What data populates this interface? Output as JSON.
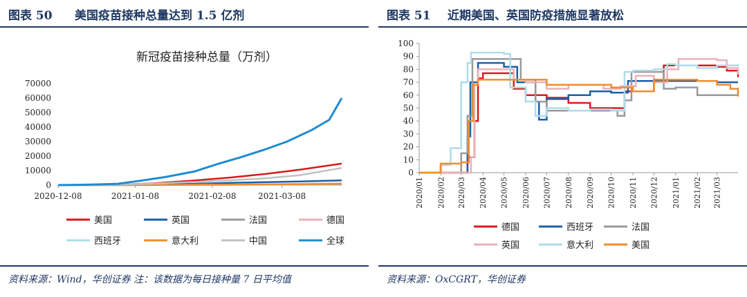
{
  "left_panel": {
    "figure_number": "图表 50",
    "figure_title": "美国疫苗接种总量达到 1.5 亿剂",
    "source_note": "资料来源：Wind，华创证券 注：该数据为每日接种量 7 日平均值"
  },
  "right_panel": {
    "figure_number": "图表 51",
    "figure_title": "近期美国、英国防疫措施显著放松",
    "source_note": "资料来源：OxCGRT，华创证券"
  },
  "chart_data": [
    {
      "type": "line",
      "title": "新冠疫苗接种总量（万剂）",
      "xlabel": "",
      "ylabel": "",
      "x_start": "2020-12-08",
      "x_end": "2021-04-01",
      "x_ticks": [
        "2020-12-08",
        "2021-01-08",
        "2021-02-08",
        "2021-03-08"
      ],
      "ylim": [
        0,
        70000
      ],
      "y_ticks": [
        0,
        10000,
        20000,
        30000,
        40000,
        50000,
        60000,
        70000
      ],
      "grid": false,
      "legend_position": "bottom",
      "series": [
        {
          "name": "美国",
          "color": "#d7191c",
          "points": [
            [
              "2020-12-08",
              0
            ],
            [
              "2020-12-20",
              30
            ],
            [
              "2021-01-01",
              280
            ],
            [
              "2021-01-15",
              1200
            ],
            [
              "2021-02-01",
              3200
            ],
            [
              "2021-02-15",
              5200
            ],
            [
              "2021-03-01",
              7600
            ],
            [
              "2021-03-15",
              10600
            ],
            [
              "2021-04-01",
              14800
            ]
          ]
        },
        {
          "name": "英国",
          "color": "#1a5ea8",
          "points": [
            [
              "2020-12-08",
              0
            ],
            [
              "2020-12-20",
              50
            ],
            [
              "2021-01-01",
              110
            ],
            [
              "2021-01-15",
              330
            ],
            [
              "2021-02-01",
              900
            ],
            [
              "2021-02-15",
              1500
            ],
            [
              "2021-03-01",
              2000
            ],
            [
              "2021-03-15",
              2500
            ],
            [
              "2021-04-01",
              3300
            ]
          ]
        },
        {
          "name": "法国",
          "color": "#999999",
          "points": [
            [
              "2020-12-08",
              0
            ],
            [
              "2021-01-15",
              50
            ],
            [
              "2021-02-01",
              150
            ],
            [
              "2021-02-15",
              280
            ],
            [
              "2021-03-01",
              420
            ],
            [
              "2021-03-15",
              620
            ],
            [
              "2021-04-01",
              1000
            ]
          ]
        },
        {
          "name": "德国",
          "color": "#e9b1b8",
          "points": [
            [
              "2020-12-08",
              0
            ],
            [
              "2021-01-01",
              20
            ],
            [
              "2021-01-15",
              80
            ],
            [
              "2021-02-01",
              250
            ],
            [
              "2021-02-15",
              400
            ],
            [
              "2021-03-01",
              600
            ],
            [
              "2021-03-15",
              850
            ],
            [
              "2021-04-01",
              1200
            ]
          ]
        },
        {
          "name": "西班牙",
          "color": "#aedbea",
          "points": [
            [
              "2020-12-08",
              0
            ],
            [
              "2021-01-15",
              50
            ],
            [
              "2021-02-01",
              140
            ],
            [
              "2021-02-15",
              250
            ],
            [
              "2021-03-01",
              380
            ],
            [
              "2021-03-15",
              520
            ],
            [
              "2021-04-01",
              780
            ]
          ]
        },
        {
          "name": "意大利",
          "color": "#f08c2e",
          "points": [
            [
              "2020-12-08",
              0
            ],
            [
              "2021-01-15",
              60
            ],
            [
              "2021-02-01",
              180
            ],
            [
              "2021-02-15",
              300
            ],
            [
              "2021-03-01",
              450
            ],
            [
              "2021-03-15",
              620
            ],
            [
              "2021-04-01",
              900
            ]
          ]
        },
        {
          "name": "中国",
          "color": "#c0c0c0",
          "points": [
            [
              "2020-12-08",
              0
            ],
            [
              "2020-12-20",
              150
            ],
            [
              "2021-01-01",
              400
            ],
            [
              "2021-01-15",
              1000
            ],
            [
              "2021-02-01",
              2200
            ],
            [
              "2021-02-15",
              3300
            ],
            [
              "2021-03-01",
              4600
            ],
            [
              "2021-03-15",
              6800
            ],
            [
              "2021-04-01",
              11800
            ]
          ]
        },
        {
          "name": "全球",
          "color": "#1e8bd0",
          "points": [
            [
              "2020-12-08",
              0
            ],
            [
              "2020-12-20",
              300
            ],
            [
              "2021-01-01",
              900
            ],
            [
              "2021-01-10",
              3000
            ],
            [
              "2021-01-20",
              5500
            ],
            [
              "2021-02-01",
              9500
            ],
            [
              "2021-02-10",
              14500
            ],
            [
              "2021-02-20",
              19500
            ],
            [
              "2021-03-01",
              24500
            ],
            [
              "2021-03-10",
              30000
            ],
            [
              "2021-03-20",
              38000
            ],
            [
              "2021-03-27",
              45000
            ],
            [
              "2021-04-01",
              60000
            ]
          ]
        }
      ]
    },
    {
      "type": "line",
      "title": "",
      "xlabel": "",
      "ylabel": "",
      "x_start": "2020-01-01",
      "x_end": "2021-03-31",
      "x_ticks": [
        "2020/01",
        "2020/02",
        "2020/03",
        "2020/04",
        "2020/05",
        "2020/06",
        "2020/07",
        "2020/08",
        "2020/09",
        "2020/10",
        "2020/11",
        "2020/12",
        "2021/01",
        "2021/02",
        "2021/03"
      ],
      "ylim": [
        0,
        100
      ],
      "y_ticks": [
        0,
        10,
        20,
        30,
        40,
        50,
        60,
        70,
        80,
        90,
        100
      ],
      "grid": false,
      "legend_position": "bottom",
      "series": [
        {
          "name": "德国",
          "color": "#d7191c",
          "points": [
            [
              "2020-01-01",
              0
            ],
            [
              "2020-02-20",
              0
            ],
            [
              "2020-03-10",
              12
            ],
            [
              "2020-03-20",
              40
            ],
            [
              "2020-03-25",
              73
            ],
            [
              "2020-04-01",
              77
            ],
            [
              "2020-05-01",
              77
            ],
            [
              "2020-05-15",
              65
            ],
            [
              "2020-06-01",
              60
            ],
            [
              "2020-07-01",
              58
            ],
            [
              "2020-08-01",
              54
            ],
            [
              "2020-09-01",
              50
            ],
            [
              "2020-10-01",
              50
            ],
            [
              "2020-10-20",
              63
            ],
            [
              "2020-11-01",
              63
            ],
            [
              "2020-12-01",
              72
            ],
            [
              "2020-12-15",
              83
            ],
            [
              "2021-01-01",
              83
            ],
            [
              "2021-02-01",
              83
            ],
            [
              "2021-03-01",
              82
            ],
            [
              "2021-03-15",
              79
            ],
            [
              "2021-03-31",
              74
            ]
          ]
        },
        {
          "name": "西班牙",
          "color": "#1a5ea8",
          "points": [
            [
              "2020-01-01",
              0
            ],
            [
              "2020-03-05",
              0
            ],
            [
              "2020-03-10",
              28
            ],
            [
              "2020-03-14",
              70
            ],
            [
              "2020-03-25",
              85
            ],
            [
              "2020-05-01",
              82
            ],
            [
              "2020-05-20",
              70
            ],
            [
              "2020-06-15",
              55
            ],
            [
              "2020-06-20",
              41
            ],
            [
              "2020-07-01",
              57
            ],
            [
              "2020-08-01",
              60
            ],
            [
              "2020-09-01",
              63
            ],
            [
              "2020-10-01",
              62
            ],
            [
              "2020-10-25",
              71
            ],
            [
              "2020-11-01",
              71
            ],
            [
              "2020-12-01",
              71
            ],
            [
              "2021-01-01",
              71
            ],
            [
              "2021-02-01",
              71
            ],
            [
              "2021-03-01",
              70
            ],
            [
              "2021-03-31",
              70
            ]
          ]
        },
        {
          "name": "法国",
          "color": "#999999",
          "points": [
            [
              "2020-01-01",
              0
            ],
            [
              "2020-02-15",
              0
            ],
            [
              "2020-03-01",
              15
            ],
            [
              "2020-03-10",
              44
            ],
            [
              "2020-03-17",
              88
            ],
            [
              "2020-05-10",
              88
            ],
            [
              "2020-05-25",
              72
            ],
            [
              "2020-06-15",
              55
            ],
            [
              "2020-07-01",
              48
            ],
            [
              "2020-08-01",
              48
            ],
            [
              "2020-09-01",
              48
            ],
            [
              "2020-10-10",
              44
            ],
            [
              "2020-10-20",
              56
            ],
            [
              "2020-10-30",
              78
            ],
            [
              "2020-12-01",
              78
            ],
            [
              "2020-12-15",
              65
            ],
            [
              "2021-01-01",
              66
            ],
            [
              "2021-02-01",
              60
            ],
            [
              "2021-03-01",
              60
            ],
            [
              "2021-03-31",
              63
            ]
          ]
        },
        {
          "name": "英国",
          "color": "#e9b1b8",
          "points": [
            [
              "2020-01-01",
              0
            ],
            [
              "2020-02-20",
              0
            ],
            [
              "2020-03-15",
              12
            ],
            [
              "2020-03-20",
              68
            ],
            [
              "2020-03-25",
              80
            ],
            [
              "2020-05-01",
              80
            ],
            [
              "2020-05-15",
              72
            ],
            [
              "2020-06-01",
              70
            ],
            [
              "2020-07-01",
              65
            ],
            [
              "2020-08-01",
              68
            ],
            [
              "2020-09-01",
              68
            ],
            [
              "2020-09-20",
              65
            ],
            [
              "2020-10-15",
              67
            ],
            [
              "2020-11-05",
              75
            ],
            [
              "2020-12-01",
              70
            ],
            [
              "2020-12-20",
              80
            ],
            [
              "2021-01-05",
              88
            ],
            [
              "2021-02-01",
              88
            ],
            [
              "2021-03-01",
              87
            ],
            [
              "2021-03-15",
              81
            ],
            [
              "2021-03-31",
              76
            ]
          ]
        },
        {
          "name": "意大利",
          "color": "#aedbea",
          "points": [
            [
              "2020-01-01",
              0
            ],
            [
              "2020-01-31",
              6
            ],
            [
              "2020-02-15",
              19
            ],
            [
              "2020-02-25",
              19
            ],
            [
              "2020-03-01",
              70
            ],
            [
              "2020-03-10",
              85
            ],
            [
              "2020-03-15",
              93
            ],
            [
              "2020-04-01",
              93
            ],
            [
              "2020-05-01",
              92
            ],
            [
              "2020-05-10",
              66
            ],
            [
              "2020-06-01",
              55
            ],
            [
              "2020-06-15",
              44
            ],
            [
              "2020-07-01",
              50
            ],
            [
              "2020-08-01",
              48
            ],
            [
              "2020-09-01",
              49
            ],
            [
              "2020-10-01",
              48
            ],
            [
              "2020-10-20",
              78
            ],
            [
              "2020-11-01",
              79
            ],
            [
              "2020-12-01",
              80
            ],
            [
              "2020-12-20",
              84
            ],
            [
              "2021-01-01",
              83
            ],
            [
              "2021-02-01",
              81
            ],
            [
              "2021-03-01",
              83
            ],
            [
              "2021-03-31",
              84
            ]
          ]
        },
        {
          "name": "美国",
          "color": "#f08c2e",
          "points": [
            [
              "2020-01-01",
              0
            ],
            [
              "2020-02-01",
              7
            ],
            [
              "2020-02-15",
              7
            ],
            [
              "2020-03-01",
              8
            ],
            [
              "2020-03-12",
              40
            ],
            [
              "2020-03-18",
              68
            ],
            [
              "2020-03-25",
              72
            ],
            [
              "2020-05-01",
              72
            ],
            [
              "2020-06-01",
              72
            ],
            [
              "2020-07-01",
              68
            ],
            [
              "2020-08-01",
              68
            ],
            [
              "2020-09-01",
              68
            ],
            [
              "2020-10-01",
              66
            ],
            [
              "2020-11-01",
              63
            ],
            [
              "2020-12-01",
              72
            ],
            [
              "2021-01-01",
              72
            ],
            [
              "2021-02-01",
              71
            ],
            [
              "2021-03-01",
              68
            ],
            [
              "2021-03-20",
              65
            ],
            [
              "2021-03-31",
              59
            ]
          ]
        }
      ]
    }
  ]
}
